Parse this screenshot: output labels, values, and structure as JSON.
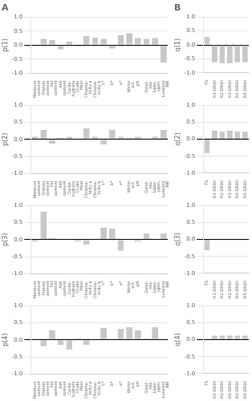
{
  "chart_data": [
    {
      "type": "bar",
      "title": "A",
      "ylabel": "p(1)",
      "categories": [
        "Moisture\ncontent",
        "Protein\ncontent",
        "Fat\ncontent",
        "Ash\ncontent",
        "Carbo-\nhydrate",
        "Crude\nfiber",
        "Chroma-\nticity a",
        "Chroma-\nticity b",
        "L*",
        "b*",
        "a*",
        "Water\nact.",
        "pH",
        "Gelat-\niniz.",
        "Lipox-\nygen.",
        "Lunasin/\nBBI"
      ],
      "values": [
        0.02,
        0.22,
        0.18,
        -0.15,
        0.12,
        -0.05,
        0.32,
        0.27,
        0.22,
        -0.12,
        0.35,
        0.42,
        0.25,
        0.22,
        0.25,
        -0.62
      ],
      "color": "#c8c8c8",
      "ylim": [
        -1.0,
        1.0
      ],
      "yticks": [
        {
          "value": -1.0,
          "label": "-1.0"
        },
        {
          "value": -0.5,
          "label": "-0.5"
        },
        {
          "value": 0.0,
          "label": "0.0"
        },
        {
          "value": 0.5,
          "label": "0.5"
        },
        {
          "value": 1.0,
          "label": "1.0"
        }
      ]
    },
    {
      "type": "bar",
      "title": "B",
      "ylabel": "q(1)",
      "categories": [
        "TS",
        "R1-DR90",
        "R2-DR90",
        "R3-DR90",
        "R4-DR90",
        "R5-DR90"
      ],
      "values": [
        0.28,
        -0.62,
        -0.65,
        -0.65,
        -0.62,
        -0.62
      ],
      "color": "#c8c8c8",
      "ylim": [
        -1.0,
        1.0
      ],
      "yticks": [
        {
          "value": -1.0,
          "label": "-1.0"
        },
        {
          "value": -0.5,
          "label": "-0.5"
        },
        {
          "value": 0.0,
          "label": "0.0"
        },
        {
          "value": 0.5,
          "label": "0.5"
        },
        {
          "value": 1.0,
          "label": "1.0"
        }
      ]
    },
    {
      "type": "bar",
      "ylabel": "p(2)",
      "categories": [
        "Moisture\ncontent",
        "Protein\ncontent",
        "Fat\ncontent",
        "Ash\ncontent",
        "Carbo-\nhydrate",
        "Crude\nfiber",
        "Chroma-\nticity a",
        "Chroma-\nticity b",
        "L*",
        "b*",
        "a*",
        "Water\nact.",
        "pH",
        "Gelat-\niniz.",
        "Lipox-\nygen.",
        "Lunasin/\nBBI"
      ],
      "values": [
        0.08,
        0.28,
        -0.12,
        0.05,
        0.08,
        0.02,
        0.32,
        0.08,
        -0.15,
        0.28,
        0.08,
        0.05,
        0.08,
        0.02,
        0.08,
        0.28
      ],
      "color": "#c8c8c8",
      "ylim": [
        -1.0,
        1.0
      ],
      "yticks": [
        {
          "value": -1.0,
          "label": "-1.0"
        },
        {
          "value": -0.5,
          "label": "-0.5"
        },
        {
          "value": 0.0,
          "label": "0.0"
        },
        {
          "value": 0.5,
          "label": "0.5"
        },
        {
          "value": 1.0,
          "label": "1.0"
        }
      ]
    },
    {
      "type": "bar",
      "ylabel": "q(2)",
      "categories": [
        "TS",
        "R1-DR90",
        "R2-DR90",
        "R3-DR90",
        "R4-DR90",
        "R5-DR90"
      ],
      "values": [
        -0.42,
        0.25,
        0.22,
        0.25,
        0.22,
        0.22
      ],
      "color": "#c8c8c8",
      "ylim": [
        -1.0,
        1.0
      ],
      "yticks": [
        {
          "value": -1.0,
          "label": "-1.0"
        },
        {
          "value": -0.5,
          "label": "-0.5"
        },
        {
          "value": 0.0,
          "label": "0.0"
        },
        {
          "value": 0.5,
          "label": "0.5"
        },
        {
          "value": 1.0,
          "label": "1.0"
        }
      ]
    },
    {
      "type": "bar",
      "ylabel": "p(3)",
      "categories": [
        "Moisture\ncontent",
        "Protein\ncontent",
        "Fat\ncontent",
        "Ash\ncontent",
        "Carbo-\nhydrate",
        "Crude\nfiber",
        "Chroma-\nticity a",
        "Chroma-\nticity b",
        "L*",
        "b*",
        "a*",
        "Water\nact.",
        "pH",
        "Gelat-\niniz.",
        "Lipox-\nygen.",
        "Lunasin/\nBBI"
      ],
      "values": [
        -0.05,
        0.82,
        0.05,
        0.02,
        0.02,
        -0.05,
        -0.15,
        0.02,
        0.35,
        0.32,
        -0.32,
        0.02,
        -0.05,
        0.18,
        0.02,
        0.18
      ],
      "color": "#c8c8c8",
      "ylim": [
        -1.0,
        1.0
      ],
      "yticks": [
        {
          "value": -1.0,
          "label": "-1.0"
        },
        {
          "value": -0.5,
          "label": "-0.5"
        },
        {
          "value": 0.0,
          "label": "0.0"
        },
        {
          "value": 0.5,
          "label": "0.5"
        },
        {
          "value": 1.0,
          "label": "1.0"
        }
      ]
    },
    {
      "type": "bar",
      "ylabel": "q(3)",
      "categories": [
        "TS",
        "R1-DR90",
        "R2-DR90",
        "R3-DR90",
        "R4-DR90",
        "R5-DR90"
      ],
      "values": [
        -0.32,
        0.02,
        0.02,
        0.02,
        0.02,
        0.02
      ],
      "color": "#c8c8c8",
      "ylim": [
        -1.0,
        1.0
      ],
      "yticks": [
        {
          "value": -1.0,
          "label": "-1.0"
        },
        {
          "value": -0.5,
          "label": "-0.5"
        },
        {
          "value": 0.0,
          "label": "0.0"
        },
        {
          "value": 0.5,
          "label": "0.5"
        },
        {
          "value": 1.0,
          "label": "1.0"
        }
      ]
    },
    {
      "type": "bar",
      "ylabel": "p(4)",
      "categories": [
        "Moisture\ncontent",
        "Protein\ncontent",
        "Fat\ncontent",
        "Ash\ncontent",
        "Carbo-\nhydrate",
        "Crude\nfiber",
        "Chroma-\nticity a",
        "Chroma-\nticity b",
        "L*",
        "b*",
        "a*",
        "Water\nact.",
        "pH",
        "Gelat-\niniz.",
        "Lipox-\nygen.",
        "Lunasin/\nBBI"
      ],
      "values": [
        0.02,
        -0.18,
        0.28,
        -0.15,
        -0.28,
        0.05,
        -0.15,
        0.02,
        0.35,
        0.02,
        0.32,
        0.38,
        0.28,
        0.05,
        0.38,
        0.02
      ],
      "color": "#c8c8c8",
      "ylim": [
        -1.0,
        1.0
      ],
      "yticks": [
        {
          "value": -1.0,
          "label": "-1.0"
        },
        {
          "value": -0.5,
          "label": "-0.5"
        },
        {
          "value": 0.0,
          "label": "0.0"
        },
        {
          "value": 0.5,
          "label": "0.5"
        },
        {
          "value": 1.0,
          "label": "1.0"
        }
      ]
    },
    {
      "type": "bar",
      "ylabel": "q(4)",
      "categories": [
        "TS",
        "R1-DR90",
        "R2-DR90",
        "R3-DR90",
        "R4-DR90",
        "R5-DR90"
      ],
      "values": [
        0.02,
        0.12,
        0.12,
        0.12,
        0.12,
        0.12
      ],
      "color": "#c8c8c8",
      "ylim": [
        -1.0,
        1.0
      ],
      "yticks": [
        {
          "value": -1.0,
          "label": "-1.0"
        },
        {
          "value": -0.5,
          "label": "-0.5"
        },
        {
          "value": 0.0,
          "label": "0.0"
        },
        {
          "value": 0.5,
          "label": "0.5"
        },
        {
          "value": 1.0,
          "label": "1.0"
        }
      ]
    }
  ]
}
